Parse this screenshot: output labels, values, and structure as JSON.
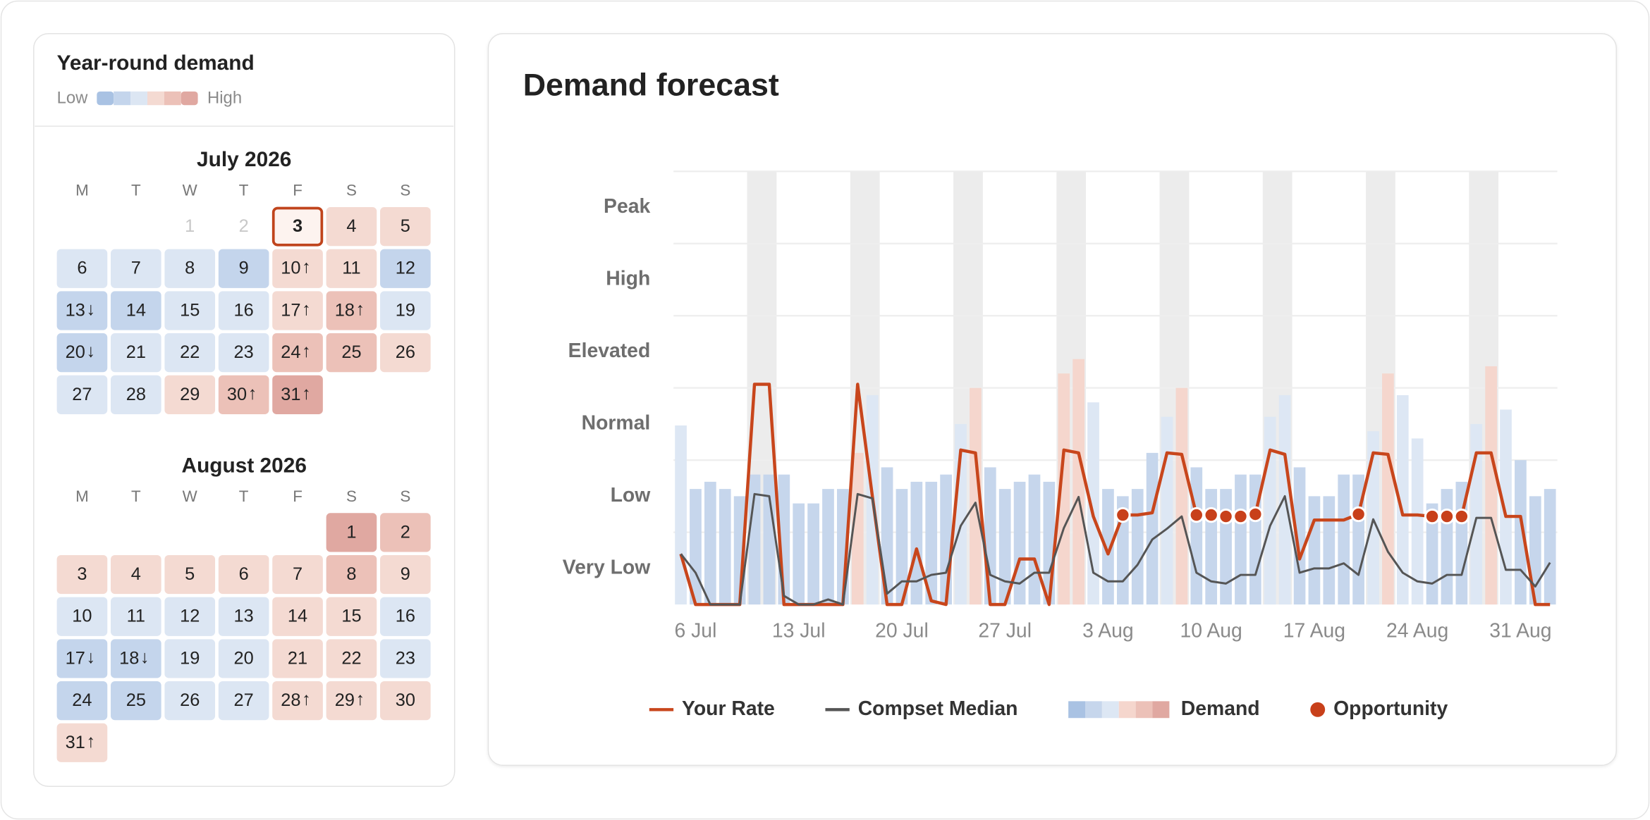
{
  "calendar": {
    "title": "Year-round demand",
    "legend": {
      "low": "Low",
      "high": "High",
      "colors": [
        "#a9c2e3",
        "#c4d5ec",
        "#dce6f3",
        "#f4dad2",
        "#ecc1b8",
        "#e0a8a1"
      ]
    },
    "weekdays": [
      "M",
      "T",
      "W",
      "T",
      "F",
      "S",
      "S"
    ],
    "months": [
      {
        "name": "July 2026",
        "days": [
          null,
          null,
          {
            "day": 1,
            "past": true
          },
          {
            "day": 2,
            "past": true
          },
          {
            "day": 3,
            "level": 3,
            "selected": true
          },
          {
            "day": 4,
            "level": 3
          },
          {
            "day": 5,
            "level": 3
          },
          {
            "day": 6,
            "level": 2
          },
          {
            "day": 7,
            "level": 2
          },
          {
            "day": 8,
            "level": 2
          },
          {
            "day": 9,
            "level": 1
          },
          {
            "day": 10,
            "level": 3,
            "trend": "↑"
          },
          {
            "day": 11,
            "level": 3
          },
          {
            "day": 12,
            "level": 1
          },
          {
            "day": 13,
            "level": 1,
            "trend": "↓"
          },
          {
            "day": 14,
            "level": 1
          },
          {
            "day": 15,
            "level": 2
          },
          {
            "day": 16,
            "level": 2
          },
          {
            "day": 17,
            "level": 3,
            "trend": "↑"
          },
          {
            "day": 18,
            "level": 4,
            "trend": "↑"
          },
          {
            "day": 19,
            "level": 2
          },
          {
            "day": 20,
            "level": 1,
            "trend": "↓"
          },
          {
            "day": 21,
            "level": 2
          },
          {
            "day": 22,
            "level": 2
          },
          {
            "day": 23,
            "level": 2
          },
          {
            "day": 24,
            "level": 4,
            "trend": "↑"
          },
          {
            "day": 25,
            "level": 4
          },
          {
            "day": 26,
            "level": 3
          },
          {
            "day": 27,
            "level": 2
          },
          {
            "day": 28,
            "level": 2
          },
          {
            "day": 29,
            "level": 3
          },
          {
            "day": 30,
            "level": 4,
            "trend": "↑"
          },
          {
            "day": 31,
            "level": 5,
            "trend": "↑"
          }
        ]
      },
      {
        "name": "August 2026",
        "days": [
          null,
          null,
          null,
          null,
          null,
          {
            "day": 1,
            "level": 5
          },
          {
            "day": 2,
            "level": 4
          },
          {
            "day": 3,
            "level": 3
          },
          {
            "day": 4,
            "level": 3
          },
          {
            "day": 5,
            "level": 3
          },
          {
            "day": 6,
            "level": 3
          },
          {
            "day": 7,
            "level": 3
          },
          {
            "day": 8,
            "level": 4
          },
          {
            "day": 9,
            "level": 3
          },
          {
            "day": 10,
            "level": 2
          },
          {
            "day": 11,
            "level": 2
          },
          {
            "day": 12,
            "level": 2
          },
          {
            "day": 13,
            "level": 2
          },
          {
            "day": 14,
            "level": 3
          },
          {
            "day": 15,
            "level": 3
          },
          {
            "day": 16,
            "level": 2
          },
          {
            "day": 17,
            "level": 1,
            "trend": "↓"
          },
          {
            "day": 18,
            "level": 1,
            "trend": "↓"
          },
          {
            "day": 19,
            "level": 2
          },
          {
            "day": 20,
            "level": 2
          },
          {
            "day": 21,
            "level": 3
          },
          {
            "day": 22,
            "level": 3
          },
          {
            "day": 23,
            "level": 2
          },
          {
            "day": 24,
            "level": 1
          },
          {
            "day": 25,
            "level": 1
          },
          {
            "day": 26,
            "level": 2
          },
          {
            "day": 27,
            "level": 2
          },
          {
            "day": 28,
            "level": 3,
            "trend": "↑"
          },
          {
            "day": 29,
            "level": 3,
            "trend": "↑"
          },
          {
            "day": 30,
            "level": 3
          },
          {
            "day": 31,
            "level": 3,
            "trend": "↑"
          }
        ]
      }
    ]
  },
  "chart_data": {
    "type": "bar_line",
    "title": "Demand forecast",
    "categories": [
      null,
      "6 Jul",
      null,
      null,
      null,
      null,
      null,
      null,
      "13 Jul",
      null,
      null,
      null,
      null,
      null,
      null,
      "20 Jul",
      null,
      null,
      null,
      null,
      null,
      null,
      "27 Jul",
      null,
      null,
      null,
      null,
      null,
      null,
      "3 Aug",
      null,
      null,
      null,
      null,
      null,
      null,
      "10 Aug",
      null,
      null,
      null,
      null,
      null,
      null,
      "17 Aug",
      null,
      null,
      null,
      null,
      null,
      null,
      "24 Aug",
      null,
      null,
      null,
      null,
      null,
      null,
      "31 Aug",
      null,
      null
    ],
    "ylim": [
      0.5,
      6.5
    ],
    "yticks": [
      {
        "value": 1,
        "label": "Very Low"
      },
      {
        "value": 2,
        "label": "Low"
      },
      {
        "value": 3,
        "label": "Normal"
      },
      {
        "value": 4,
        "label": "Elevated"
      },
      {
        "value": 5,
        "label": "High"
      },
      {
        "value": 6,
        "label": "Peak"
      }
    ],
    "grid": true,
    "weekend_shading": [
      5,
      12,
      19,
      26,
      33,
      40,
      47,
      54
    ],
    "shading_color": "#ececec",
    "palette": [
      "#a9c2e3",
      "#c6d6ec",
      "#dde7f4",
      "#f5d6cd",
      "#ecc1b8",
      "#e0a8a1"
    ],
    "legend": "bottom",
    "series": [
      {
        "name": "Your Rate",
        "type": "line",
        "color": "#c8461c",
        "values": [
          1.2,
          0.5,
          0.5,
          0.5,
          0.5,
          3.55,
          3.55,
          0.5,
          0.5,
          0.5,
          0.5,
          0.5,
          3.55,
          2.0,
          0.5,
          0.5,
          1.27,
          0.55,
          0.5,
          2.64,
          2.6,
          0.5,
          0.5,
          1.13,
          1.13,
          0.5,
          2.64,
          2.6,
          1.72,
          1.2,
          1.74,
          1.74,
          1.77,
          2.6,
          2.58,
          1.74,
          1.74,
          1.72,
          1.72,
          1.75,
          2.64,
          2.58,
          1.13,
          1.67,
          1.67,
          1.67,
          1.75,
          2.6,
          2.58,
          1.74,
          1.74,
          1.72,
          1.72,
          1.72,
          2.6,
          2.6,
          1.72,
          1.72,
          0.5,
          0.5
        ]
      },
      {
        "name": "Compset Median",
        "type": "line",
        "color": "#555555",
        "values": [
          1.2,
          0.94,
          0.5,
          0.5,
          0.5,
          2.03,
          2.0,
          0.62,
          0.5,
          0.5,
          0.57,
          0.5,
          2.03,
          1.97,
          0.65,
          0.82,
          0.82,
          0.91,
          0.94,
          1.59,
          1.91,
          0.91,
          0.82,
          0.79,
          0.94,
          0.94,
          1.56,
          1.99,
          0.94,
          0.82,
          0.82,
          1.05,
          1.4,
          1.55,
          1.72,
          0.94,
          0.82,
          0.79,
          0.91,
          0.91,
          1.59,
          2.0,
          0.94,
          1.0,
          1.0,
          1.07,
          0.91,
          1.68,
          1.23,
          0.94,
          0.82,
          0.79,
          0.91,
          0.91,
          1.7,
          1.7,
          0.98,
          0.98,
          0.75,
          1.08
        ]
      },
      {
        "name": "Demand",
        "type": "bar",
        "levels": [
          2,
          1,
          1,
          1,
          1,
          1,
          1,
          1,
          1,
          1,
          1,
          1,
          3,
          2,
          1,
          1,
          1,
          1,
          1,
          2,
          3,
          1,
          1,
          1,
          1,
          1,
          3,
          3,
          2,
          1,
          1,
          1,
          1,
          2,
          3,
          1,
          1,
          1,
          1,
          1,
          2,
          2,
          1,
          1,
          1,
          1,
          1,
          2,
          3,
          2,
          2,
          1,
          1,
          1,
          2,
          3,
          2,
          1,
          1,
          1
        ],
        "values": [
          2.98,
          2.1,
          2.2,
          2.1,
          2.0,
          2.3,
          2.3,
          2.3,
          1.9,
          1.9,
          2.1,
          2.1,
          2.6,
          3.4,
          2.4,
          2.1,
          2.2,
          2.2,
          2.3,
          3.0,
          3.5,
          2.4,
          2.1,
          2.2,
          2.3,
          2.2,
          3.7,
          3.9,
          3.3,
          2.1,
          2.0,
          2.1,
          2.6,
          3.1,
          3.5,
          2.4,
          2.1,
          2.1,
          2.3,
          2.3,
          3.1,
          3.4,
          2.4,
          2.0,
          2.0,
          2.3,
          2.3,
          2.9,
          3.7,
          3.4,
          2.8,
          1.9,
          2.1,
          2.2,
          3.0,
          3.8,
          3.2,
          2.5,
          2.0,
          2.1
        ]
      },
      {
        "name": "Opportunity",
        "type": "scatter",
        "color": "#c8401a",
        "values": [
          null,
          null,
          null,
          null,
          null,
          null,
          null,
          null,
          null,
          null,
          null,
          null,
          null,
          null,
          null,
          null,
          null,
          null,
          null,
          null,
          null,
          null,
          null,
          null,
          null,
          null,
          null,
          null,
          null,
          null,
          1.74,
          null,
          null,
          null,
          null,
          1.74,
          1.74,
          1.72,
          1.72,
          1.75,
          null,
          null,
          null,
          null,
          null,
          null,
          1.75,
          null,
          null,
          null,
          null,
          1.72,
          1.72,
          1.72,
          null,
          null,
          null,
          null,
          null,
          null
        ]
      }
    ]
  }
}
